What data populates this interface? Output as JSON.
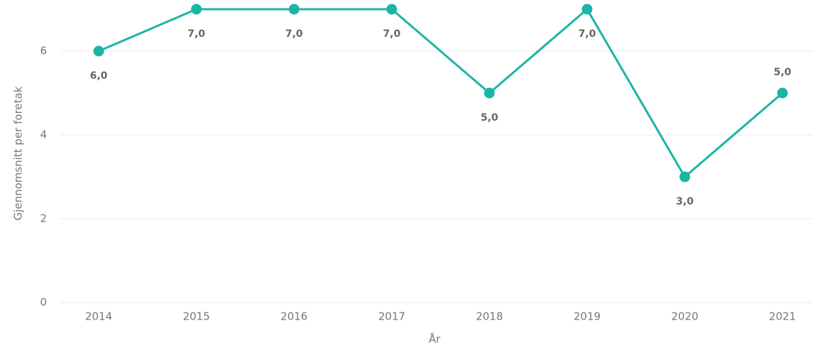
{
  "chart_data": {
    "type": "line",
    "x_label": "År",
    "y_label": "Gjennomsnitt per foretak",
    "categories": [
      "2014",
      "2015",
      "2016",
      "2017",
      "2018",
      "2019",
      "2020",
      "2021"
    ],
    "series": [
      {
        "name": "Gjennomsnitt per foretak",
        "color": "#1ab5a5",
        "values": [
          6,
          7,
          7,
          7,
          5,
          7,
          3,
          5
        ],
        "value_labels": [
          "6,0",
          "7,0",
          "7,0",
          "7,0",
          "5,0",
          "7,0",
          "3,0",
          "5,0"
        ]
      }
    ],
    "ylim": [
      0,
      7.2
    ],
    "yticks": [
      0,
      2,
      4,
      6
    ],
    "grid": true
  }
}
